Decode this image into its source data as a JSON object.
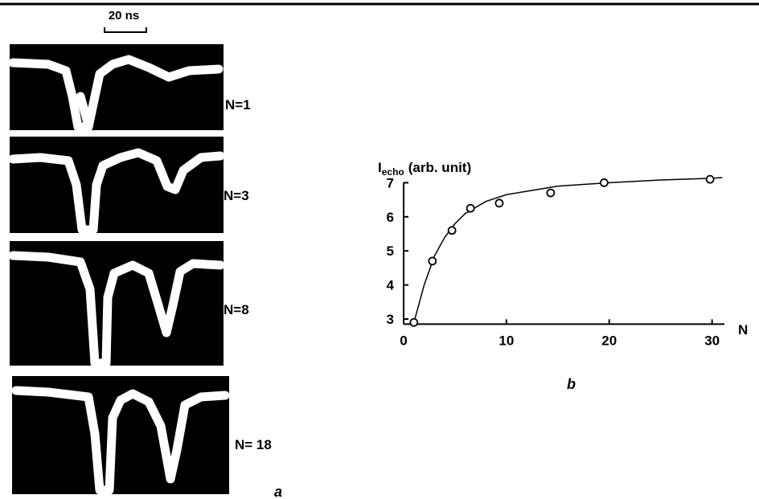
{
  "panel_a": {
    "scale_label": "20 ns",
    "traces": [
      "N=1",
      "N=3",
      "N=8",
      "N= 18"
    ],
    "caption": "a"
  },
  "chart_data": {
    "type": "scatter",
    "caption": "b",
    "ylabel": {
      "main": "I",
      "sub": "echo",
      "rest": "(arb. unit)"
    },
    "xlabel": "N",
    "xlim": [
      0,
      31.2
    ],
    "ylim": [
      2.85,
      7.2
    ],
    "xticks": [
      0,
      10,
      20,
      30
    ],
    "yticks": [
      3,
      4,
      5,
      6,
      7
    ],
    "series": [
      {
        "style": "circle",
        "color": "#000000",
        "x": [
          1,
          2.8,
          4.7,
          6.5,
          9.3,
          14.3,
          19.5,
          29.8
        ],
        "y": [
          2.9,
          4.7,
          5.6,
          6.25,
          6.4,
          6.7,
          7.0,
          7.1
        ]
      },
      {
        "style": "line",
        "color": "#000000",
        "x": [
          1,
          2,
          3,
          4,
          5,
          6,
          8,
          10,
          15,
          20,
          25,
          30,
          31
        ],
        "y": [
          2.9,
          4.0,
          4.85,
          5.4,
          5.8,
          6.1,
          6.45,
          6.65,
          6.9,
          7.0,
          7.08,
          7.13,
          7.15
        ]
      }
    ]
  }
}
